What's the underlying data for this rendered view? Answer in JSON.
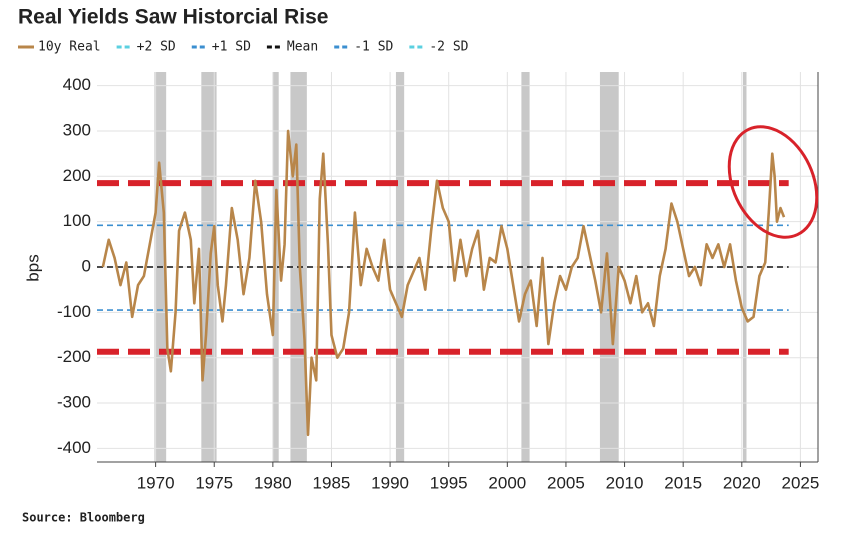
{
  "chart_data": {
    "type": "line",
    "title": "Real Yields Saw Historcial Rise",
    "y_label": "bps",
    "source": "Source: Bloomberg",
    "xlim": [
      1965,
      2026.5
    ],
    "xticks": [
      1970,
      1975,
      1980,
      1985,
      1990,
      1995,
      2000,
      2005,
      2010,
      2015,
      2020,
      2025
    ],
    "ylim": [
      -430,
      430
    ],
    "yticks": [
      -400,
      -300,
      -200,
      -100,
      0,
      100,
      200,
      300,
      400
    ],
    "grid": true,
    "shaded_periods": [
      [
        1969.9,
        1970.9
      ],
      [
        1973.9,
        1975.2
      ],
      [
        1980.0,
        1980.5
      ],
      [
        1981.5,
        1982.9
      ],
      [
        1990.5,
        1991.2
      ],
      [
        2001.2,
        2001.9
      ],
      [
        2007.9,
        2009.5
      ],
      [
        2020.1,
        2020.4
      ]
    ],
    "series": [
      {
        "name": "10y Real",
        "color": "#b8864a",
        "x": [
          1965.5,
          1966,
          1966.5,
          1967,
          1967.5,
          1968,
          1968.5,
          1969,
          1969.5,
          1970,
          1970.3,
          1970.7,
          1971,
          1971.3,
          1971.7,
          1972,
          1972.5,
          1973,
          1973.3,
          1973.7,
          1974,
          1974.3,
          1974.7,
          1975,
          1975.3,
          1975.7,
          1976,
          1976.5,
          1977,
          1977.5,
          1978,
          1978.5,
          1979,
          1979.5,
          1980,
          1980.3,
          1980.7,
          1981,
          1981.3,
          1981.7,
          1982,
          1982.3,
          1982.7,
          1983,
          1983.3,
          1983.7,
          1984,
          1984.3,
          1984.7,
          1985,
          1985.5,
          1986,
          1986.5,
          1987,
          1987.5,
          1988,
          1988.5,
          1989,
          1989.5,
          1990,
          1990.5,
          1991,
          1991.5,
          1992,
          1992.5,
          1993,
          1993.5,
          1994,
          1994.5,
          1995,
          1995.5,
          1996,
          1996.5,
          1997,
          1997.5,
          1998,
          1998.5,
          1999,
          1999.5,
          2000,
          2000.5,
          2001,
          2001.5,
          2002,
          2002.5,
          2003,
          2003.5,
          2004,
          2004.5,
          2005,
          2005.5,
          2006,
          2006.5,
          2007,
          2007.5,
          2008,
          2008.5,
          2009,
          2009.5,
          2010,
          2010.5,
          2011,
          2011.5,
          2012,
          2012.5,
          2013,
          2013.5,
          2014,
          2014.5,
          2015,
          2015.5,
          2016,
          2016.5,
          2017,
          2017.5,
          2018,
          2018.5,
          2019,
          2019.5,
          2020,
          2020.5,
          2021,
          2021.5,
          2022,
          2022.3,
          2022.6,
          2022.8,
          2023,
          2023.3,
          2023.6
        ],
        "values": [
          0,
          60,
          20,
          -40,
          10,
          -110,
          -40,
          -20,
          50,
          120,
          230,
          120,
          -180,
          -230,
          -100,
          80,
          120,
          60,
          -80,
          40,
          -250,
          -150,
          30,
          90,
          -40,
          -120,
          -40,
          130,
          60,
          -60,
          20,
          190,
          100,
          -60,
          -150,
          170,
          -30,
          50,
          300,
          200,
          270,
          0,
          -160,
          -370,
          -200,
          -250,
          150,
          250,
          50,
          -150,
          -200,
          -180,
          -100,
          120,
          -40,
          40,
          0,
          -30,
          60,
          -50,
          -80,
          -110,
          -40,
          -10,
          20,
          -50,
          80,
          190,
          130,
          100,
          -30,
          60,
          -20,
          40,
          80,
          -50,
          20,
          10,
          90,
          40,
          -40,
          -120,
          -60,
          -30,
          -130,
          20,
          -170,
          -80,
          -20,
          -50,
          0,
          20,
          90,
          30,
          -30,
          -100,
          30,
          -170,
          0,
          -30,
          -80,
          -20,
          -100,
          -80,
          -130,
          -20,
          40,
          140,
          100,
          40,
          -20,
          0,
          -40,
          50,
          20,
          50,
          0,
          50,
          -30,
          -90,
          -120,
          -110,
          -20,
          10,
          120,
          250,
          200,
          100,
          130,
          110
        ]
      },
      {
        "name": "+2 SD",
        "color": "#5bd0e0",
        "line_color": "#d8222a",
        "level": 185
      },
      {
        "name": "+1 SD",
        "color": "#3b8fd0",
        "level": 92
      },
      {
        "name": "Mean",
        "color": "#111111",
        "level": 0
      },
      {
        "name": "-1 SD",
        "color": "#3b8fd0",
        "level": -95
      },
      {
        "name": "-2 SD",
        "color": "#5bd0e0",
        "line_color": "#d8222a",
        "level": -187
      }
    ]
  }
}
